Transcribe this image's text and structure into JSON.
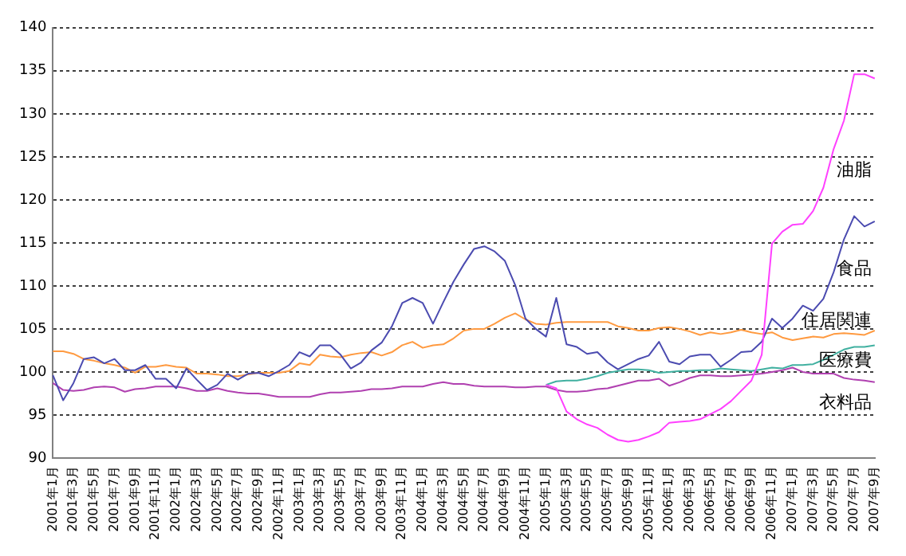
{
  "chart_data": {
    "type": "line",
    "categories": [
      "2001年1月",
      null,
      "2001年3月",
      null,
      "2001年5月",
      null,
      "2001年7月",
      null,
      "2001年9月",
      null,
      "2001年11月",
      null,
      "2002年1月",
      null,
      "2002年3月",
      null,
      "2002年5月",
      null,
      "2002年7月",
      null,
      "2002年9月",
      null,
      "2002年11月",
      null,
      "2003年1月",
      null,
      "2003年3月",
      null,
      "2003年5月",
      null,
      "2003年7月",
      null,
      "2003年9月",
      null,
      "2003年11月",
      null,
      "2004年1月",
      null,
      "2004年3月",
      null,
      "2004年5月",
      null,
      "2004年7月",
      null,
      "2004年9月",
      null,
      "2004年11月",
      null,
      "2005年1月",
      null,
      "2005年3月",
      null,
      "2005年5月",
      null,
      "2005年7月",
      null,
      "2005年9月",
      null,
      "2005年11月",
      null,
      "2006年1月",
      null,
      "2006年3月",
      null,
      "2006年5月",
      null,
      "2006年7月",
      null,
      "2006年9月",
      null,
      "2006年11月",
      null,
      "2007年1月",
      null,
      "2007年3月",
      null,
      "2007年5月",
      null,
      "2007年7月",
      null,
      "2007年9月"
    ],
    "series": [
      {
        "name": "油脂",
        "color": "#ff40ff",
        "values": [
          null,
          null,
          null,
          null,
          null,
          null,
          null,
          null,
          null,
          null,
          null,
          null,
          null,
          null,
          null,
          null,
          null,
          null,
          null,
          null,
          null,
          null,
          null,
          null,
          null,
          null,
          null,
          null,
          null,
          null,
          null,
          null,
          null,
          null,
          null,
          null,
          null,
          null,
          null,
          null,
          null,
          null,
          null,
          null,
          null,
          null,
          null,
          null,
          98.5,
          98.1,
          95.4,
          94.5,
          93.9,
          93.5,
          92.7,
          92.1,
          91.9,
          92.1,
          92.5,
          93.0,
          94.1,
          94.2,
          94.3,
          94.5,
          95.1,
          95.7,
          96.6,
          97.8,
          99.0,
          102.0,
          114.9,
          116.3,
          117.1,
          117.2,
          118.7,
          121.4,
          125.9,
          129.2,
          134.6,
          134.6,
          134.1
        ]
      },
      {
        "name": "食品",
        "color": "#4b4bb0",
        "values": [
          99.6,
          96.7,
          98.7,
          101.5,
          101.7,
          101.0,
          101.5,
          100.2,
          100.2,
          100.8,
          99.2,
          99.2,
          98.1,
          100.4,
          99.1,
          97.9,
          98.5,
          99.8,
          99.1,
          99.8,
          99.9,
          99.5,
          100.1,
          100.8,
          102.3,
          101.8,
          103.1,
          103.1,
          102.0,
          100.4,
          101.1,
          102.5,
          103.4,
          105.3,
          108.0,
          108.6,
          108.0,
          105.6,
          108.1,
          110.5,
          112.5,
          114.3,
          114.6,
          114.0,
          112.9,
          110.1,
          106.2,
          105.0,
          104.1,
          108.6,
          103.2,
          102.9,
          102.1,
          102.3,
          101.1,
          100.3,
          100.9,
          101.5,
          101.9,
          103.5,
          101.2,
          100.9,
          101.8,
          102.0,
          102.0,
          100.6,
          101.4,
          102.3,
          102.4,
          103.5,
          106.2,
          105.1,
          106.2,
          107.7,
          107.1,
          108.5,
          111.6,
          115.4,
          118.1,
          116.9,
          117.5
        ]
      },
      {
        "name": "住居関連",
        "color": "#ff9a40",
        "values": [
          102.4,
          102.4,
          102.1,
          101.5,
          101.3,
          101.0,
          100.8,
          100.5,
          99.9,
          100.6,
          100.6,
          100.8,
          100.6,
          100.5,
          99.8,
          99.8,
          99.7,
          99.5,
          99.5,
          99.7,
          99.9,
          99.9,
          99.9,
          100.1,
          101.0,
          100.8,
          102.0,
          101.8,
          101.7,
          102.0,
          102.2,
          102.3,
          101.9,
          102.3,
          103.1,
          103.5,
          102.8,
          103.1,
          103.2,
          103.9,
          104.8,
          105.0,
          105.0,
          105.6,
          106.3,
          106.8,
          106.1,
          105.6,
          105.5,
          105.7,
          105.8,
          105.8,
          105.8,
          105.8,
          105.8,
          105.3,
          105.1,
          104.8,
          104.8,
          105.1,
          105.2,
          105.0,
          104.7,
          104.3,
          104.6,
          104.4,
          104.6,
          104.9,
          104.6,
          104.4,
          104.6,
          104.0,
          103.7,
          103.9,
          104.1,
          104.0,
          104.4,
          104.5,
          104.4,
          104.3,
          104.8
        ]
      },
      {
        "name": "医療費",
        "color": "#40b0a0",
        "values": [
          null,
          null,
          null,
          null,
          null,
          null,
          null,
          null,
          null,
          null,
          null,
          null,
          null,
          null,
          null,
          null,
          null,
          null,
          null,
          null,
          null,
          null,
          null,
          null,
          null,
          null,
          null,
          null,
          null,
          null,
          null,
          null,
          null,
          null,
          null,
          null,
          null,
          null,
          null,
          null,
          null,
          null,
          null,
          null,
          null,
          null,
          null,
          null,
          98.5,
          98.9,
          99.0,
          99.0,
          99.2,
          99.5,
          99.9,
          100.1,
          100.3,
          100.3,
          100.2,
          99.9,
          100.0,
          100.1,
          100.1,
          100.2,
          100.2,
          100.4,
          100.3,
          100.2,
          100.1,
          100.3,
          100.5,
          100.4,
          100.8,
          100.8,
          100.9,
          101.4,
          102.0,
          102.6,
          102.9,
          102.9,
          103.1
        ]
      },
      {
        "name": "衣料品",
        "color": "#b040b0",
        "values": [
          98.7,
          97.9,
          97.8,
          97.9,
          98.2,
          98.3,
          98.2,
          97.7,
          98.0,
          98.1,
          98.3,
          98.3,
          98.3,
          98.1,
          97.8,
          97.8,
          98.1,
          97.8,
          97.6,
          97.5,
          97.5,
          97.3,
          97.1,
          97.1,
          97.1,
          97.1,
          97.4,
          97.6,
          97.6,
          97.7,
          97.8,
          98.0,
          98.0,
          98.1,
          98.3,
          98.3,
          98.3,
          98.6,
          98.8,
          98.6,
          98.6,
          98.4,
          98.3,
          98.3,
          98.3,
          98.2,
          98.2,
          98.3,
          98.3,
          97.9,
          97.7,
          97.7,
          97.8,
          98.0,
          98.1,
          98.4,
          98.7,
          99.0,
          99.0,
          99.2,
          98.4,
          98.8,
          99.3,
          99.6,
          99.6,
          99.5,
          99.5,
          99.6,
          99.7,
          99.8,
          100.0,
          100.2,
          100.5,
          100.0,
          99.8,
          99.8,
          99.8,
          99.3,
          99.1,
          99.0,
          98.8
        ]
      }
    ],
    "ylim": [
      90,
      140
    ],
    "yticks": [
      90,
      95,
      100,
      105,
      110,
      115,
      120,
      125,
      130,
      135,
      140
    ],
    "grid": "y",
    "legend": false,
    "marker": "none",
    "line_style": "solid"
  }
}
